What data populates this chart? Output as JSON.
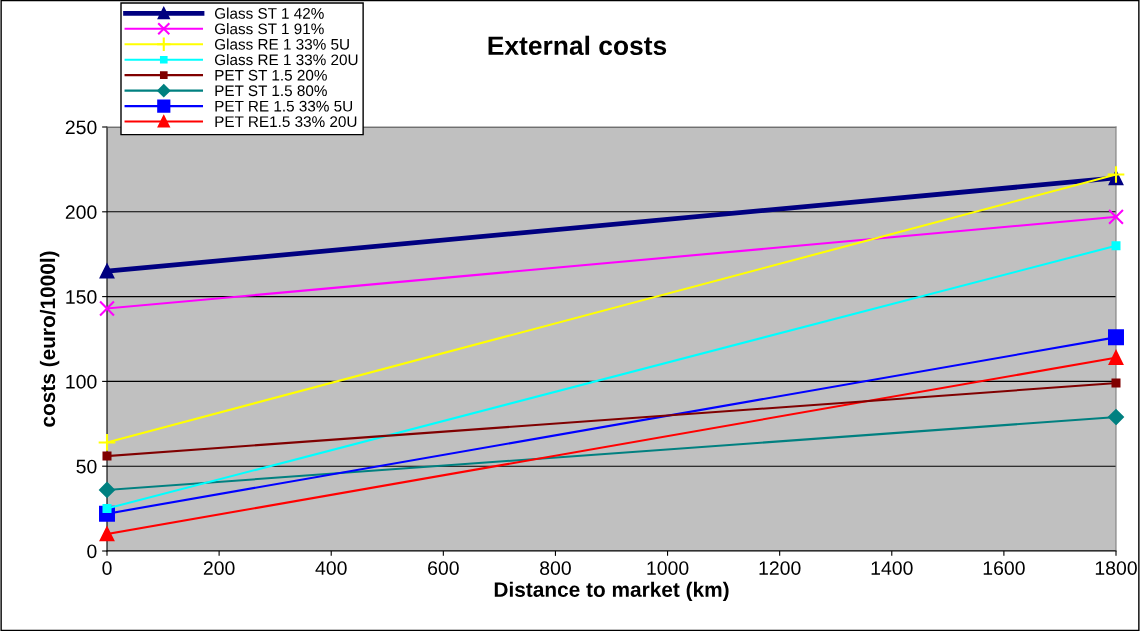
{
  "chart_data": {
    "type": "line",
    "title": "External costs",
    "xlabel": "Distance to market (km)",
    "ylabel": "costs (euro/1000l)",
    "xlim": [
      0,
      1800
    ],
    "xticks": [
      0,
      200,
      400,
      600,
      800,
      1000,
      1200,
      1400,
      1600,
      1800
    ],
    "ylim": [
      0,
      250
    ],
    "yticks": [
      0,
      50,
      100,
      150,
      200,
      250
    ],
    "x": [
      0,
      1800
    ],
    "grid": "y",
    "legend": "top left",
    "line_style": "solid",
    "series": [
      {
        "name": "Glass ST 1 42%",
        "color": "#000080",
        "marker": "triangle",
        "values": [
          165,
          220
        ]
      },
      {
        "name": "Glass ST 1 91%",
        "color": "#ff00ff",
        "marker": "cross",
        "values": [
          143,
          197
        ]
      },
      {
        "name": "Glass RE 1 33% 5U",
        "color": "#ffff00",
        "marker": "plus",
        "values": [
          64,
          222
        ]
      },
      {
        "name": "Glass RE 1 33% 20U",
        "color": "#00ffff",
        "marker": "square",
        "values": [
          25,
          180
        ]
      },
      {
        "name": "PET ST 1.5 20%",
        "color": "#800000",
        "marker": "square",
        "values": [
          56,
          99
        ]
      },
      {
        "name": "PET ST 1.5 80%",
        "color": "#008080",
        "marker": "diamond",
        "values": [
          36,
          79
        ]
      },
      {
        "name": "PET RE 1.5 33% 5U",
        "color": "#0000ff",
        "marker": "square",
        "values": [
          22,
          126
        ]
      },
      {
        "name": "PET RE1.5 33% 20U",
        "color": "#ff0000",
        "marker": "triangle",
        "values": [
          10,
          114
        ]
      }
    ]
  }
}
